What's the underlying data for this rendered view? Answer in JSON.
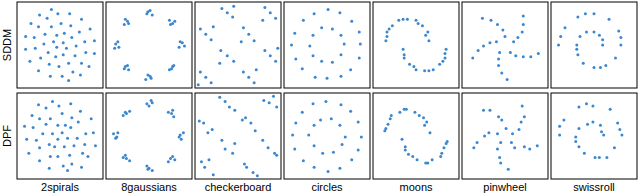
{
  "row_labels": [
    "SDDM",
    "DPF"
  ],
  "column_labels": [
    "2spirals",
    "8gaussians",
    "checkerboard",
    "circles",
    "moons",
    "pinwheel",
    "swissroll"
  ],
  "chart_data": [
    {
      "type": "scatter",
      "color": "#3b87d0",
      "marker": "dot",
      "tick_labels": false,
      "xlim": [
        -4,
        4
      ],
      "ylim": [
        -4,
        4
      ],
      "x": [
        0.3,
        0.6,
        0.3,
        -0.4,
        -1.1,
        -1.5,
        -1.4,
        -0.8,
        0.1,
        1.0,
        1.8,
        2.3,
        2.4,
        2.0,
        1.2,
        0.2,
        -0.9,
        -2.0,
        -2.8,
        -3.2,
        -3.2,
        -2.7,
        -1.9,
        -0.8,
        -0.3,
        -0.6,
        -0.3,
        0.4,
        1.1,
        1.5,
        1.4,
        0.8,
        -0.1,
        -1.0,
        -1.8,
        -2.3,
        -2.4,
        -2.0,
        -1.2,
        -0.2,
        0.9,
        2.0,
        2.8,
        3.2,
        3.2,
        2.7,
        1.9,
        0.8
      ],
      "values": [
        0.2,
        -0.3,
        -0.9,
        -1.1,
        -0.7,
        0.1,
        1.0,
        1.7,
        2.0,
        1.8,
        1.2,
        0.3,
        -0.7,
        -1.7,
        -2.5,
        -2.9,
        -2.9,
        -2.4,
        -1.5,
        -0.4,
        0.8,
        2.0,
        2.8,
        3.3,
        -0.2,
        0.3,
        0.9,
        1.1,
        0.7,
        -0.1,
        -1.0,
        -1.7,
        -2.0,
        -1.8,
        -1.2,
        -0.3,
        0.7,
        1.7,
        2.5,
        2.9,
        2.9,
        2.4,
        1.5,
        0.4,
        -0.8,
        -2.0,
        -2.8,
        -3.3
      ]
    },
    {
      "type": "scatter",
      "color": "#3b87d0",
      "marker": "dot",
      "tick_labels": false,
      "xlim": [
        -4,
        4
      ],
      "ylim": [
        -4,
        4
      ],
      "x": [
        3.1,
        2.8,
        3.3,
        2.9,
        2.2,
        1.9,
        2.4,
        2.0,
        0.1,
        -0.2,
        0.3,
        -0.1,
        -2.0,
        -2.3,
        -2.2,
        -1.9,
        -3.1,
        -2.8,
        -3.2,
        -2.9,
        -2.2,
        -1.9,
        -2.3,
        -2.0,
        0.2,
        -0.1,
        -0.3,
        0.1,
        2.1,
        2.3,
        1.9,
        2.2
      ],
      "values": [
        0.2,
        -0.2,
        -0.1,
        0.3,
        2.0,
        2.3,
        2.2,
        1.9,
        3.2,
        2.9,
        2.8,
        3.1,
        2.2,
        1.9,
        2.4,
        2.0,
        0.1,
        -0.2,
        -0.3,
        0.3,
        -2.0,
        -2.3,
        -2.2,
        -1.9,
        -3.1,
        -2.8,
        -3.2,
        -2.9,
        -2.2,
        -1.9,
        -2.3,
        -2.0
      ]
    },
    {
      "type": "scatter",
      "color": "#3b87d0",
      "marker": "dot",
      "tick_labels": false,
      "xlim": [
        -4,
        4
      ],
      "ylim": [
        -4,
        4
      ],
      "x": [
        -1.5,
        -0.5,
        -1.0,
        -0.4,
        2.5,
        3.5,
        3.0,
        2.3,
        -3.5,
        -2.5,
        -3.0,
        -2.3,
        0.5,
        1.5,
        1.0,
        0.3,
        -1.6,
        -0.4,
        -1.0,
        -1.7,
        2.5,
        3.5,
        3.0,
        3.7,
        -3.5,
        -2.5,
        -3.0,
        -3.7,
        0.5,
        1.5,
        1.0,
        1.7
      ],
      "values": [
        3.4,
        2.6,
        3.0,
        3.6,
        3.5,
        2.5,
        3.0,
        2.3,
        1.5,
        0.5,
        1.0,
        1.7,
        1.6,
        0.4,
        1.0,
        0.3,
        -0.5,
        -1.5,
        -1.0,
        -1.7,
        -0.5,
        -1.5,
        -1.0,
        -0.3,
        -2.5,
        -3.5,
        -3.0,
        -3.7,
        -2.5,
        -3.5,
        -3.0,
        -2.3
      ]
    },
    {
      "type": "scatter",
      "color": "#3b87d0",
      "marker": "dot",
      "tick_labels": false,
      "xlim": [
        -4,
        4
      ],
      "ylim": [
        -4,
        4
      ],
      "x": [
        3.1,
        3.0,
        2.3,
        1.2,
        0.1,
        -1.2,
        -2.2,
        -3.0,
        -3.3,
        -2.9,
        -2.3,
        -1.1,
        0.0,
        1.3,
        2.2,
        3.0,
        1.6,
        1.3,
        0.5,
        -0.5,
        -1.3,
        -1.6,
        -1.3,
        -0.5,
        0.5,
        1.3
      ],
      "values": [
        0.1,
        1.2,
        2.2,
        3.0,
        3.3,
        2.9,
        2.3,
        1.1,
        0.0,
        -1.3,
        -2.2,
        -3.0,
        -3.1,
        -2.9,
        -2.3,
        -1.2,
        0.1,
        0.9,
        1.5,
        1.6,
        0.9,
        -0.1,
        -1.0,
        -1.5,
        -1.6,
        -0.9
      ]
    },
    {
      "type": "scatter",
      "color": "#3b87d0",
      "marker": "dot",
      "tick_labels": false,
      "xlim": [
        -4,
        4
      ],
      "ylim": [
        -4,
        4
      ],
      "x": [
        1.2,
        1.1,
        0.6,
        0.0,
        -0.8,
        -1.6,
        -2.2,
        -2.7,
        -2.8,
        0.9,
        0.2,
        -1.2,
        -2.5,
        -2.7,
        -1.2,
        -1.1,
        -0.6,
        0.0,
        0.8,
        1.6,
        2.2,
        2.7,
        2.8,
        -1.1,
        -0.2,
        1.2,
        2.5,
        2.7
      ],
      "values": [
        0.4,
        1.2,
        1.8,
        2.3,
        2.4,
        2.3,
        1.8,
        1.2,
        0.4,
        0.9,
        2.0,
        2.4,
        1.5,
        0.8,
        -0.4,
        -1.2,
        -1.8,
        -2.3,
        -2.4,
        -2.3,
        -1.8,
        -1.2,
        -0.4,
        -0.9,
        -2.0,
        -2.4,
        -1.5,
        -0.8
      ]
    },
    {
      "type": "scatter",
      "color": "#3b87d0",
      "marker": "dot",
      "tick_labels": false,
      "xlim": [
        -4,
        4
      ],
      "ylim": [
        -4,
        4
      ],
      "x": [
        0.0,
        -0.2,
        -0.7,
        -1.3,
        -2.1,
        -0.8,
        -1.4,
        -2.0,
        -2.5,
        -3.0,
        -0.5,
        -0.6,
        -0.6,
        -0.3,
        0.2,
        0.5,
        1.0,
        1.7,
        2.4,
        3.1,
        0.8,
        1.2,
        1.6,
        1.7,
        1.7
      ],
      "values": [
        0.8,
        1.4,
        1.9,
        2.3,
        2.5,
        0.3,
        0.2,
        -0.1,
        -0.5,
        -1.2,
        -0.7,
        -1.3,
        -1.9,
        -2.6,
        -3.2,
        -0.7,
        -1.0,
        -1.1,
        -1.1,
        -0.8,
        0.3,
        0.7,
        1.2,
        1.9,
        2.7
      ]
    },
    {
      "type": "scatter",
      "color": "#3b87d0",
      "marker": "dot",
      "tick_labels": false,
      "xlim": [
        -4,
        4
      ],
      "ylim": [
        -4,
        4
      ],
      "x": [
        0.8,
        0.8,
        0.5,
        0.0,
        -0.7,
        -1.3,
        -1.6,
        -1.5,
        -1.0,
        0.0,
        1.1,
        2.0,
        2.5,
        2.3,
        1.4,
        0.0,
        -1.5,
        -2.7,
        -3.3,
        -1.6,
        0.6,
        2.5,
        -0.8,
        -3.1
      ],
      "values": [
        0.0,
        0.5,
        0.9,
        1.2,
        1.2,
        0.8,
        0.0,
        -0.9,
        -1.7,
        -2.1,
        -1.9,
        -1.2,
        0.0,
        1.3,
        2.4,
        2.9,
        2.6,
        1.6,
        0.0,
        -0.4,
        -2.1,
        0.7,
        2.9,
        0.8
      ]
    },
    {
      "type": "scatter",
      "color": "#3b87d0",
      "marker": "dot",
      "tick_labels": false,
      "xlim": [
        -4,
        4
      ],
      "ylim": [
        -4,
        4
      ],
      "x": [
        0.2,
        0.7,
        0.4,
        -0.5,
        -1.0,
        -1.6,
        -1.3,
        -0.9,
        0.2,
        1.1,
        1.7,
        2.4,
        2.3,
        2.1,
        1.1,
        0.3,
        -1.0,
        -1.9,
        -2.9,
        -3.1,
        -3.3,
        -2.6,
        -2.0,
        -0.7,
        -0.2,
        -0.7,
        -0.2,
        0.5,
        1.0,
        1.6,
        1.3,
        0.9,
        -0.2,
        -0.9,
        -1.9,
        -2.2,
        -2.5,
        -1.9,
        -1.3,
        -0.1,
        1.0,
        1.9,
        2.9,
        3.1,
        3.3,
        2.6,
        2.0,
        0.7
      ],
      "values": [
        0.3,
        -0.2,
        -1.0,
        -1.0,
        -0.8,
        0.2,
        1.1,
        1.6,
        2.1,
        1.7,
        1.3,
        0.2,
        -0.8,
        -1.6,
        -2.6,
        -2.8,
        -3.0,
        -2.3,
        -1.6,
        -0.3,
        0.9,
        1.9,
        2.9,
        3.2,
        -0.3,
        0.2,
        1.0,
        1.0,
        0.8,
        -0.2,
        -0.9,
        -1.8,
        -1.9,
        -1.9,
        -1.1,
        -0.4,
        0.8,
        1.6,
        2.6,
        2.8,
        3.0,
        2.3,
        1.6,
        0.3,
        -0.9,
        -1.9,
        -2.9,
        -3.2
      ]
    },
    {
      "type": "scatter",
      "color": "#3b87d0",
      "marker": "dot",
      "tick_labels": false,
      "xlim": [
        -4,
        4
      ],
      "ylim": [
        -4,
        4
      ],
      "x": [
        2.9,
        3.2,
        3.0,
        2.8,
        2.1,
        2.3,
        1.8,
        2.2,
        -0.2,
        0.2,
        0.0,
        0.3,
        -2.1,
        -1.8,
        -2.4,
        -2.2,
        -3.0,
        -3.3,
        -2.9,
        -3.1,
        -2.1,
        -2.4,
        -1.8,
        -2.2,
        0.0,
        0.3,
        -0.2,
        -0.1,
        2.0,
        2.4,
        2.2,
        1.8
      ],
      "values": [
        0.1,
        0.3,
        -0.3,
        -0.1,
        2.1,
        1.8,
        2.2,
        2.4,
        3.0,
        3.3,
        2.8,
        3.1,
        2.1,
        2.3,
        1.9,
        2.2,
        -0.1,
        0.2,
        0.3,
        -0.2,
        -2.1,
        -2.0,
        -2.3,
        -1.8,
        -3.0,
        -3.2,
        -2.8,
        -3.1,
        -2.1,
        -2.2,
        -1.9,
        -2.4
      ]
    },
    {
      "type": "scatter",
      "color": "#3b87d0",
      "marker": "dot",
      "tick_labels": false,
      "xlim": [
        -4,
        4
      ],
      "ylim": [
        -4,
        4
      ],
      "x": [
        -1.7,
        -0.3,
        -1.2,
        -0.8,
        2.4,
        3.6,
        2.9,
        3.3,
        -3.6,
        -2.4,
        -3.2,
        -2.8,
        0.4,
        1.6,
        1.2,
        0.7,
        -1.5,
        -0.5,
        -1.2,
        -0.3,
        2.3,
        3.4,
        2.8,
        3.6,
        -3.4,
        -2.3,
        -3.1,
        -2.7,
        0.6,
        1.4,
        0.8,
        1.8
      ],
      "values": [
        3.6,
        2.4,
        3.2,
        2.7,
        3.3,
        2.7,
        3.1,
        3.7,
        1.4,
        0.6,
        1.2,
        0.3,
        1.5,
        0.5,
        1.2,
        1.7,
        -0.4,
        -1.6,
        -1.2,
        -0.7,
        -0.4,
        -1.6,
        -1.1,
        -1.8,
        -2.4,
        -3.6,
        -2.9,
        -2.2,
        -2.6,
        -3.4,
        -2.9,
        -3.7
      ]
    },
    {
      "type": "scatter",
      "color": "#3b87d0",
      "marker": "dot",
      "tick_labels": false,
      "xlim": [
        -4,
        4
      ],
      "ylim": [
        -4,
        4
      ],
      "x": [
        3.2,
        2.9,
        2.2,
        1.3,
        -0.1,
        -1.3,
        -2.3,
        -2.9,
        -3.2,
        -3.0,
        -2.2,
        -1.2,
        0.1,
        1.2,
        2.3,
        2.9,
        1.7,
        1.2,
        0.4,
        -0.6,
        -1.2,
        -1.7,
        -1.2,
        -0.4,
        0.6,
        1.4
      ],
      "values": [
        -0.1,
        1.3,
        2.3,
        2.9,
        3.2,
        3.0,
        2.2,
        1.2,
        0.1,
        -1.2,
        -2.3,
        -2.9,
        -3.3,
        -3.0,
        -2.2,
        -1.3,
        -0.1,
        1.0,
        1.6,
        1.5,
        1.0,
        0.1,
        -0.9,
        -1.6,
        -1.5,
        -0.8
      ]
    },
    {
      "type": "scatter",
      "color": "#3b87d0",
      "marker": "dot",
      "tick_labels": false,
      "xlim": [
        -4,
        4
      ],
      "ylim": [
        -4,
        4
      ],
      "x": [
        1.3,
        1.0,
        0.7,
        -0.1,
        -0.9,
        -1.5,
        -2.3,
        -2.6,
        -2.9,
        0.8,
        0.3,
        -1.1,
        -2.4,
        -2.8,
        -1.3,
        -1.0,
        -0.7,
        0.1,
        0.9,
        1.5,
        2.3,
        2.6,
        2.9,
        -1.0,
        -0.3,
        1.1,
        2.4,
        2.8
      ],
      "values": [
        0.3,
        1.3,
        1.7,
        2.2,
        2.5,
        2.2,
        1.9,
        1.1,
        0.5,
        1.0,
        1.9,
        2.5,
        1.6,
        0.7,
        -0.3,
        -1.3,
        -1.7,
        -2.2,
        -2.5,
        -2.2,
        -1.9,
        -1.1,
        -0.5,
        -1.0,
        -1.9,
        -2.5,
        -1.6,
        -0.7
      ]
    },
    {
      "type": "scatter",
      "color": "#3b87d0",
      "marker": "dot",
      "tick_labels": false,
      "xlim": [
        -4,
        4
      ],
      "ylim": [
        -4,
        4
      ],
      "x": [
        0.1,
        -0.3,
        -0.6,
        -1.4,
        -2.0,
        -0.7,
        -1.5,
        -1.9,
        -2.6,
        -2.9,
        -0.4,
        -0.7,
        -0.5,
        -0.4,
        0.3,
        0.6,
        0.9,
        1.8,
        2.3,
        3.0,
        0.7,
        1.3,
        1.5,
        1.8,
        1.6
      ],
      "values": [
        0.7,
        1.5,
        1.8,
        2.4,
        2.4,
        0.2,
        0.3,
        0.0,
        -0.6,
        -1.1,
        -0.6,
        -1.2,
        -2.0,
        -2.5,
        -3.1,
        -0.6,
        -1.1,
        -1.0,
        -1.2,
        -0.9,
        0.2,
        0.6,
        1.3,
        1.8,
        2.8
      ]
    },
    {
      "type": "scatter",
      "color": "#3b87d0",
      "marker": "dot",
      "tick_labels": false,
      "xlim": [
        -4,
        4
      ],
      "ylim": [
        -4,
        4
      ],
      "x": [
        0.9,
        0.7,
        0.6,
        -0.1,
        -0.6,
        -1.4,
        -1.7,
        -1.4,
        -0.9,
        0.1,
        1.2,
        1.9,
        2.6,
        2.2,
        1.5,
        -0.1,
        -1.4,
        -2.8,
        -3.2,
        -1.7,
        0.5,
        2.4,
        -0.7,
        -3.2
      ],
      "values": [
        0.1,
        0.4,
        1.0,
        1.3,
        1.1,
        0.7,
        -0.1,
        -1.0,
        -1.6,
        -2.0,
        -2.0,
        -1.1,
        0.1,
        1.2,
        2.5,
        2.8,
        2.7,
        1.5,
        0.1,
        -0.5,
        -2.0,
        0.6,
        3.0,
        0.9
      ]
    }
  ]
}
